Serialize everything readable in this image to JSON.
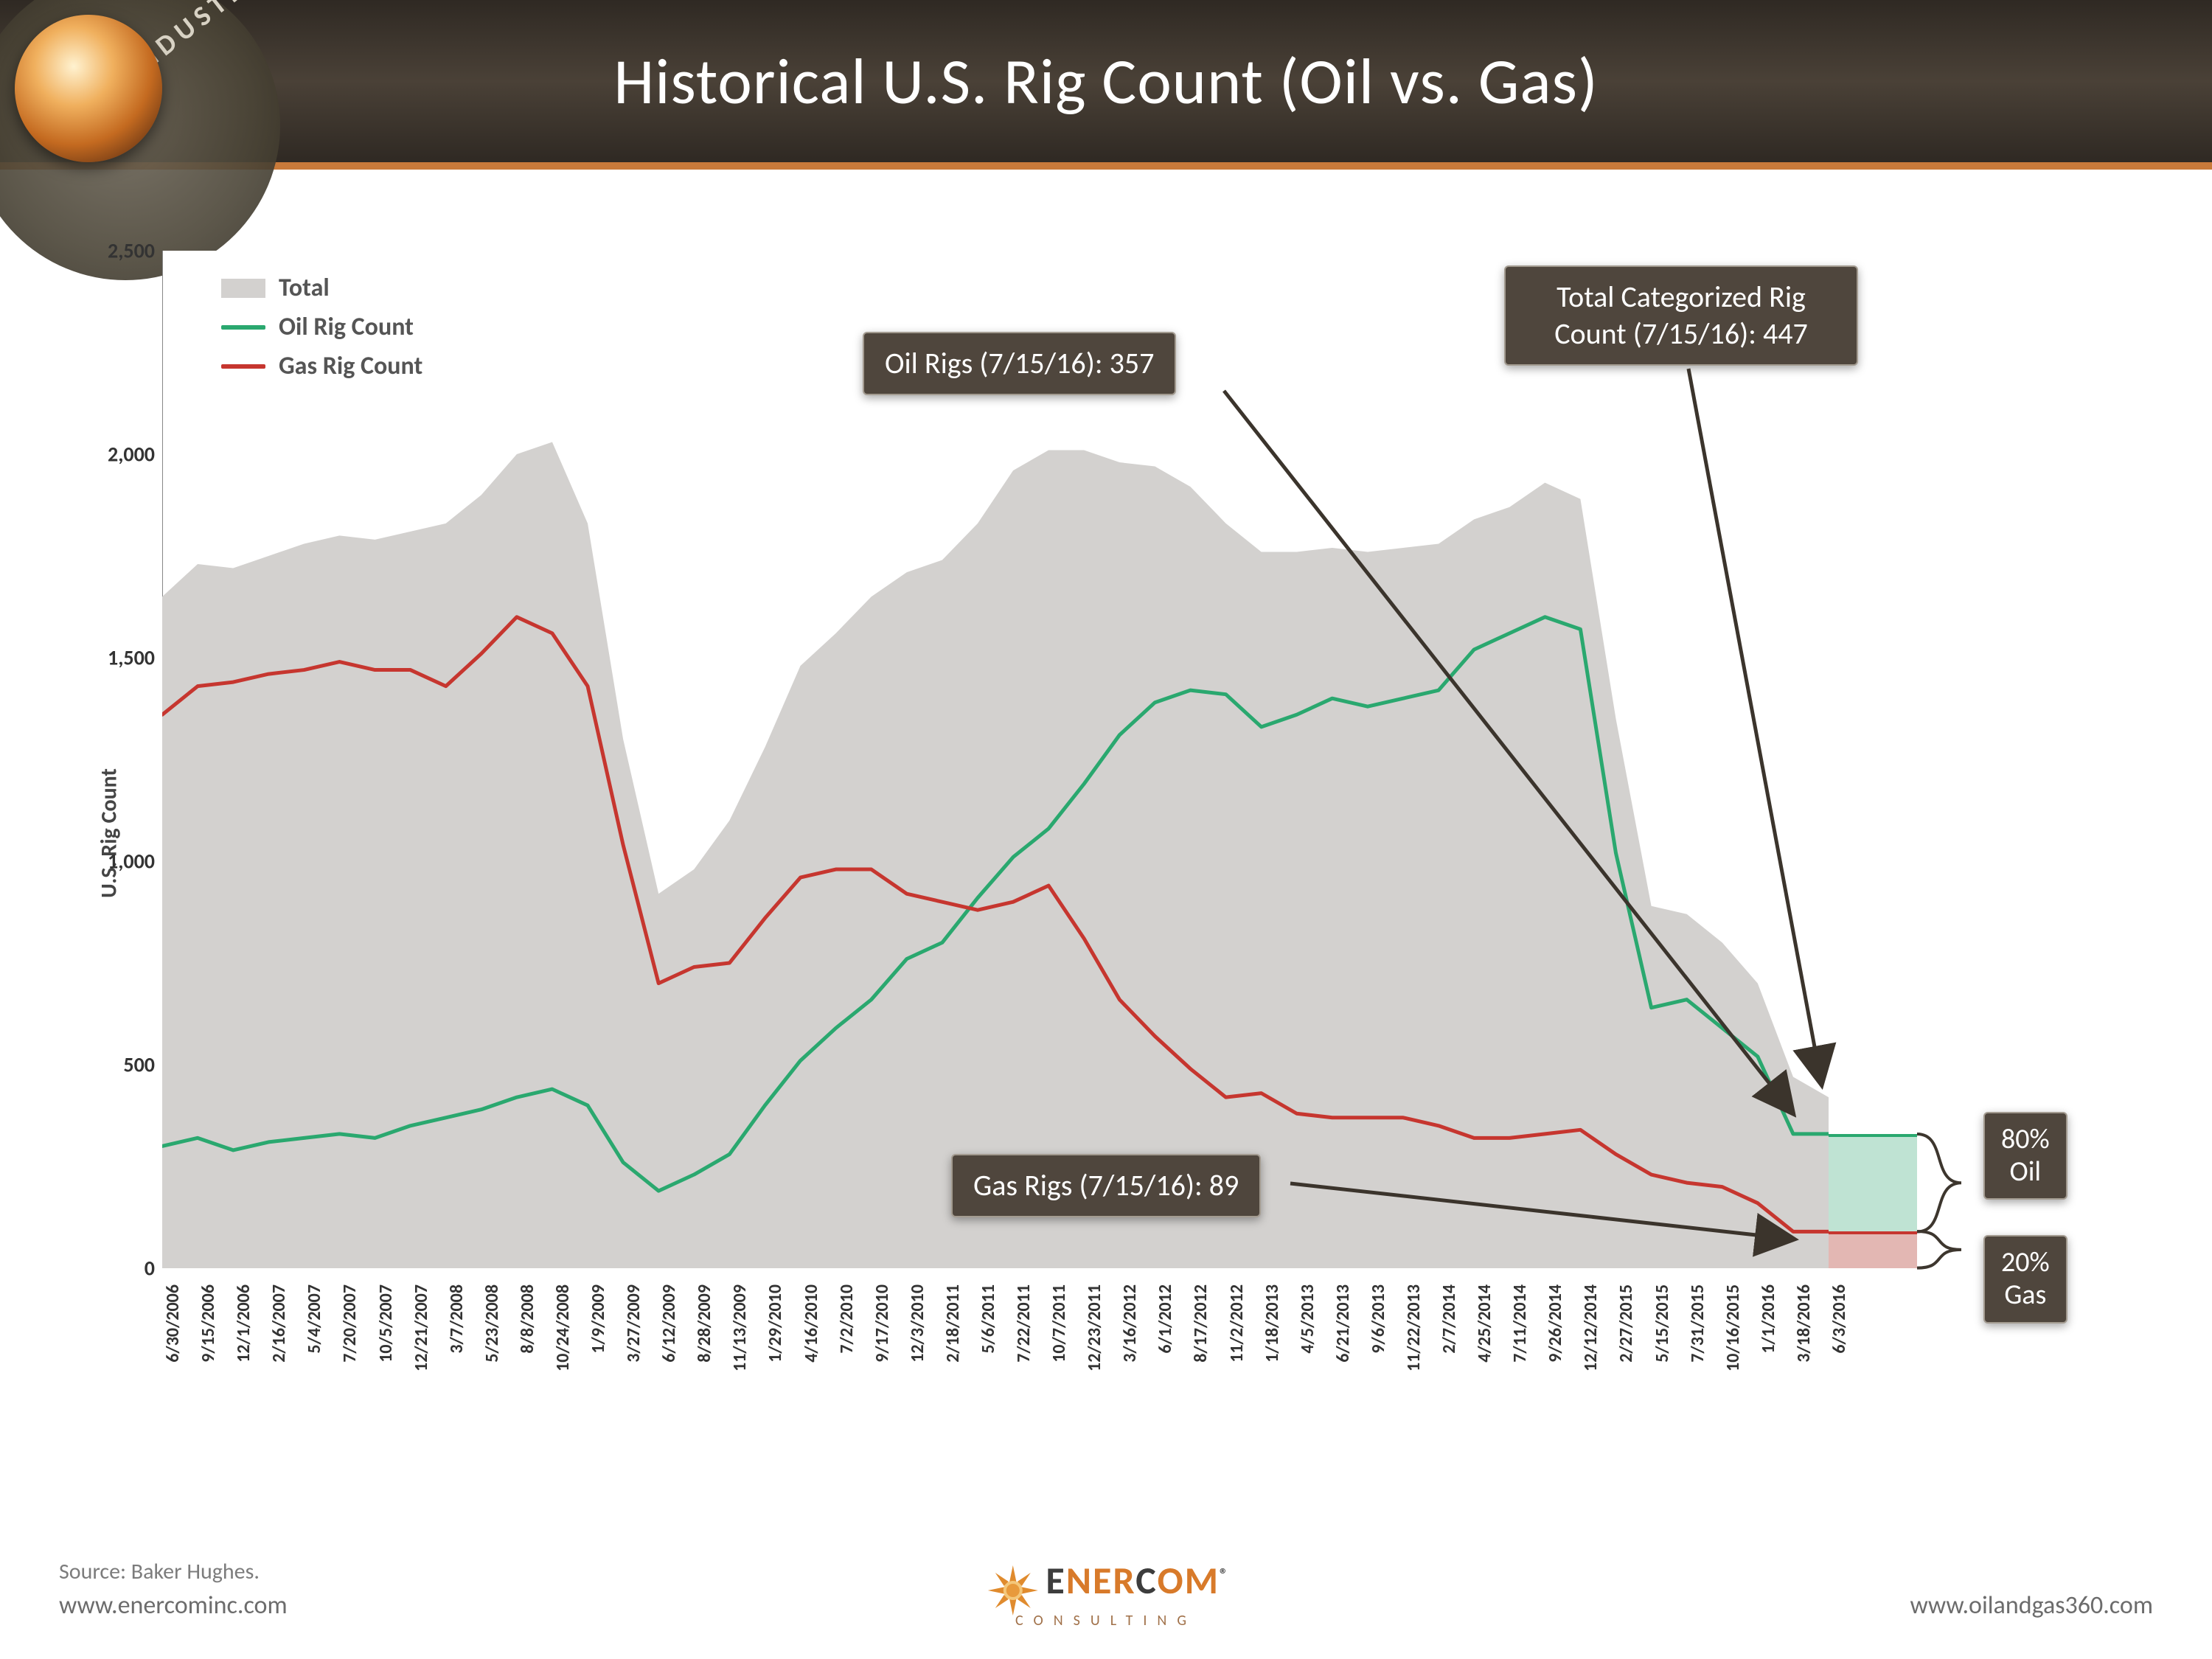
{
  "header": {
    "title": "Historical U.S. Rig Count (Oil vs. Gas)",
    "bar_gradient": [
      "#2f2923",
      "#4a4137",
      "#2f2923"
    ],
    "underline_color": "#c97a3a",
    "corner_word": "INDUSTR"
  },
  "chart": {
    "type": "line+area",
    "background_color": "#ffffff",
    "ylabel": "U.S. Rig Count",
    "label_fontsize": 30,
    "tick_fontsize": 28,
    "ylim": [
      0,
      2500
    ],
    "yticks": [
      0,
      500,
      1000,
      1500,
      2000,
      2500
    ],
    "ytick_labels": [
      "0",
      "500",
      "1,000",
      "1,500",
      "2,000",
      "2,500"
    ],
    "x_dates": [
      "6/30/2006",
      "9/15/2006",
      "12/1/2006",
      "2/16/2007",
      "5/4/2007",
      "7/20/2007",
      "10/5/2007",
      "12/21/2007",
      "3/7/2008",
      "5/23/2008",
      "8/8/2008",
      "10/24/2008",
      "1/9/2009",
      "3/27/2009",
      "6/12/2009",
      "8/28/2009",
      "11/13/2009",
      "1/29/2010",
      "4/16/2010",
      "7/2/2010",
      "9/17/2010",
      "12/3/2010",
      "2/18/2011",
      "5/6/2011",
      "7/22/2011",
      "10/7/2011",
      "12/23/2011",
      "3/16/2012",
      "6/1/2012",
      "8/17/2012",
      "11/2/2012",
      "1/18/2013",
      "4/5/2013",
      "6/21/2013",
      "9/6/2013",
      "11/22/2013",
      "2/7/2014",
      "4/25/2014",
      "7/11/2014",
      "9/26/2014",
      "12/12/2014",
      "2/27/2015",
      "5/15/2015",
      "7/31/2015",
      "10/16/2015",
      "1/1/2016",
      "3/18/2016",
      "6/3/2016"
    ],
    "series": {
      "total": {
        "label": "Total",
        "kind": "area",
        "fill_color": "#d3d1cf",
        "values": [
          1650,
          1730,
          1720,
          1750,
          1780,
          1800,
          1790,
          1810,
          1830,
          1900,
          2000,
          2030,
          1830,
          1300,
          920,
          980,
          1100,
          1280,
          1480,
          1560,
          1650,
          1710,
          1740,
          1830,
          1960,
          2010,
          2010,
          1980,
          1970,
          1920,
          1830,
          1760,
          1760,
          1770,
          1760,
          1770,
          1780,
          1840,
          1870,
          1930,
          1890,
          1350,
          890,
          870,
          800,
          700,
          470,
          420
        ]
      },
      "oil": {
        "label": "Oil Rig Count",
        "kind": "line",
        "color": "#2aa86f",
        "line_width": 5,
        "values": [
          300,
          320,
          290,
          310,
          320,
          330,
          320,
          350,
          370,
          390,
          420,
          440,
          400,
          260,
          190,
          230,
          280,
          400,
          510,
          590,
          660,
          760,
          800,
          910,
          1010,
          1080,
          1190,
          1310,
          1390,
          1420,
          1410,
          1330,
          1360,
          1400,
          1380,
          1400,
          1420,
          1520,
          1560,
          1600,
          1570,
          1020,
          640,
          660,
          590,
          520,
          330,
          330
        ]
      },
      "gas": {
        "label": "Gas Rig Count",
        "kind": "line",
        "color": "#c6362f",
        "line_width": 5,
        "values": [
          1360,
          1430,
          1440,
          1460,
          1470,
          1490,
          1470,
          1470,
          1430,
          1510,
          1600,
          1560,
          1430,
          1040,
          700,
          740,
          750,
          860,
          960,
          980,
          980,
          920,
          900,
          880,
          900,
          940,
          810,
          660,
          570,
          490,
          420,
          430,
          380,
          370,
          370,
          370,
          350,
          320,
          320,
          330,
          340,
          280,
          230,
          210,
          200,
          160,
          90,
          90
        ]
      }
    },
    "legend_position": "top-left",
    "callouts": {
      "oil": {
        "text": "Oil Rigs (7/15/16): 357"
      },
      "gas": {
        "text": "Gas Rigs (7/15/16): 89"
      },
      "total": {
        "line1": "Total Categorized Rig",
        "line2": "Count (7/15/16): 447"
      }
    },
    "pct_boxes": {
      "oil": {
        "pct": "80%",
        "label": "Oil",
        "fill": "#bfe3d3"
      },
      "gas": {
        "pct": "20%",
        "label": "Gas",
        "fill": "#e3b7b3"
      }
    },
    "callout_box": {
      "bg": "#4f463d",
      "border": "#a39b90",
      "text_color": "#ffffff",
      "fontsize": 40
    }
  },
  "footer": {
    "source": "Source: Baker Hughes.",
    "url_left": "www.enercominc.com",
    "url_right": "www.oilandgas360.com",
    "brand_main_pre": "E",
    "brand_main_mid1": "NER",
    "brand_main_mid2": "C",
    "brand_main_post": "OM",
    "brand_sub": "CONSULTING",
    "brand_reg": "®"
  }
}
